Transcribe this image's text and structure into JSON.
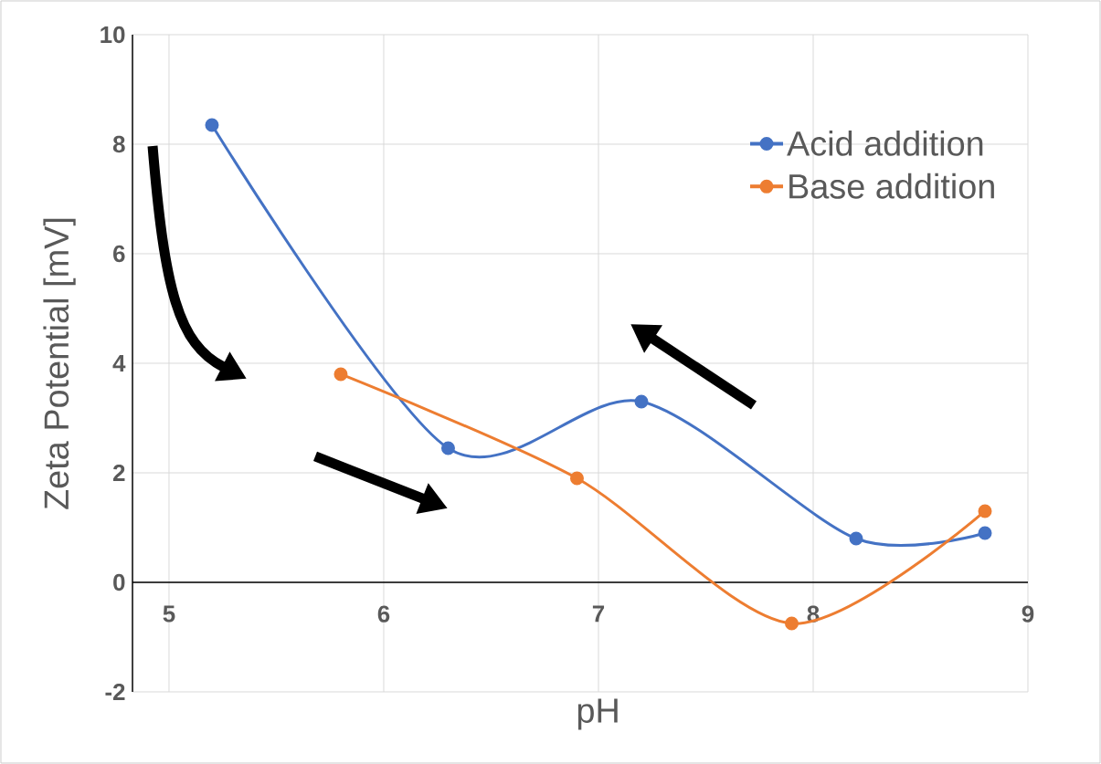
{
  "chart_data": {
    "type": "line",
    "xlabel": "pH",
    "ylabel": "Zeta Potential [mV]",
    "xlim": [
      4.83,
      9
    ],
    "ylim": [
      -2,
      10
    ],
    "xticks": [
      5,
      6,
      7,
      8,
      9
    ],
    "yticks": [
      -2,
      0,
      2,
      4,
      6,
      8,
      10
    ],
    "grid": true,
    "legend": "top right",
    "marker": "circle",
    "line_style": "solid",
    "series": [
      {
        "name": "Acid addition",
        "color": "#4472c4",
        "x": [
          5.2,
          6.3,
          7.2,
          8.2,
          8.8
        ],
        "values": [
          8.35,
          2.45,
          3.3,
          0.8,
          0.9
        ]
      },
      {
        "name": "Base addition",
        "color": "#ed7d31",
        "x": [
          5.8,
          6.9,
          7.9,
          8.8
        ],
        "values": [
          3.8,
          1.9,
          -0.75,
          1.3
        ]
      }
    ]
  }
}
